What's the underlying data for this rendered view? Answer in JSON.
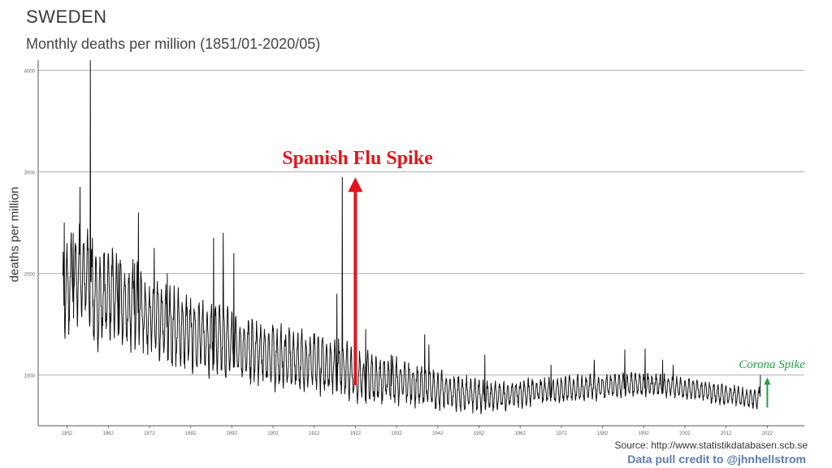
{
  "header": {
    "title": "SWEDEN",
    "subtitle": "Monthly deaths per million (1851/01-2020/05)"
  },
  "annotations": {
    "spanish_flu": "Spanish Flu Spike",
    "corona": "Corona Spike"
  },
  "footer": {
    "source": "Source: http://www.statistikdatabasen.scb.se",
    "credit": "Data pull credit to @jhnhellstrom"
  },
  "colors": {
    "line": "#111111",
    "spanish_arrow": "#e3141c",
    "corona": "#22a045",
    "grid": "#9a9a9a"
  },
  "chart_data": {
    "type": "line",
    "title": "SWEDEN",
    "subtitle": "Monthly deaths per million (1851/01-2020/05)",
    "xlabel": "",
    "ylabel": "deaths per million",
    "xlim": [
      1845,
      2031
    ],
    "ylim": [
      500,
      4100
    ],
    "grid": true,
    "yticks": [
      1000,
      2000,
      3000,
      4000
    ],
    "xticks": [
      "1852",
      "1862",
      "1872",
      "1882",
      "1892",
      "1902",
      "1912",
      "1922",
      "1932",
      "1942",
      "1952",
      "1962",
      "1972",
      "1982",
      "1992",
      "2002",
      "2012",
      "2022"
    ],
    "series": [
      {
        "values": [
          [
            1851,
            1750
          ],
          [
            1853,
            1900
          ],
          [
            1855,
            2000
          ],
          [
            1857,
            1950
          ],
          [
            1859,
            1700
          ],
          [
            1861,
            1780
          ],
          [
            1863,
            1800
          ],
          [
            1865,
            1700
          ],
          [
            1867,
            1650
          ],
          [
            1869,
            1720
          ],
          [
            1871,
            1600
          ],
          [
            1873,
            1550
          ],
          [
            1875,
            1500
          ],
          [
            1877,
            1480
          ],
          [
            1879,
            1450
          ],
          [
            1881,
            1420
          ],
          [
            1883,
            1400
          ],
          [
            1885,
            1380
          ],
          [
            1887,
            1360
          ],
          [
            1889,
            1340
          ],
          [
            1891,
            1320
          ],
          [
            1893,
            1290
          ],
          [
            1895,
            1260
          ],
          [
            1897,
            1230
          ],
          [
            1899,
            1210
          ],
          [
            1901,
            1190
          ],
          [
            1903,
            1170
          ],
          [
            1905,
            1160
          ],
          [
            1907,
            1150
          ],
          [
            1909,
            1140
          ],
          [
            1911,
            1130
          ],
          [
            1913,
            1110
          ],
          [
            1915,
            1100
          ],
          [
            1917,
            1090
          ],
          [
            1919,
            1080
          ],
          [
            1921,
            1000
          ],
          [
            1923,
            980
          ],
          [
            1925,
            970
          ],
          [
            1927,
            960
          ],
          [
            1929,
            950
          ],
          [
            1931,
            940
          ],
          [
            1933,
            930
          ],
          [
            1935,
            920
          ],
          [
            1937,
            900
          ],
          [
            1939,
            880
          ],
          [
            1941,
            860
          ],
          [
            1943,
            850
          ],
          [
            1945,
            830
          ],
          [
            1947,
            820
          ],
          [
            1949,
            810
          ],
          [
            1951,
            800
          ],
          [
            1953,
            790
          ],
          [
            1955,
            785
          ],
          [
            1957,
            790
          ],
          [
            1959,
            800
          ],
          [
            1961,
            810
          ],
          [
            1963,
            820
          ],
          [
            1965,
            830
          ],
          [
            1967,
            840
          ],
          [
            1969,
            850
          ],
          [
            1971,
            855
          ],
          [
            1973,
            860
          ],
          [
            1975,
            865
          ],
          [
            1977,
            870
          ],
          [
            1979,
            875
          ],
          [
            1981,
            880
          ],
          [
            1983,
            885
          ],
          [
            1985,
            890
          ],
          [
            1987,
            895
          ],
          [
            1989,
            900
          ],
          [
            1991,
            905
          ],
          [
            1993,
            900
          ],
          [
            1995,
            895
          ],
          [
            1997,
            890
          ],
          [
            1999,
            885
          ],
          [
            2001,
            870
          ],
          [
            2003,
            860
          ],
          [
            2005,
            850
          ],
          [
            2007,
            835
          ],
          [
            2009,
            820
          ],
          [
            2011,
            810
          ],
          [
            2013,
            800
          ],
          [
            2015,
            790
          ],
          [
            2017,
            780
          ],
          [
            2019,
            760
          ],
          [
            2020,
            780
          ]
        ],
        "amplitude": [
          [
            1851,
            380
          ],
          [
            1880,
            300
          ],
          [
            1920,
            220
          ],
          [
            1940,
            160
          ],
          [
            1960,
            110
          ],
          [
            1980,
            100
          ],
          [
            2000,
            90
          ],
          [
            2020,
            80
          ]
        ],
        "spikes": [
          [
            1851.3,
            2500
          ],
          [
            1853.5,
            2400
          ],
          [
            1855.2,
            2850
          ],
          [
            1857.2,
            2250
          ],
          [
            1857.7,
            4100
          ],
          [
            1858.2,
            2350
          ],
          [
            1862.0,
            2200
          ],
          [
            1864.5,
            2100
          ],
          [
            1868.4,
            2100
          ],
          [
            1869.3,
            2600
          ],
          [
            1873.2,
            2250
          ],
          [
            1876.3,
            2000
          ],
          [
            1887.6,
            2350
          ],
          [
            1889.9,
            2400
          ],
          [
            1892.5,
            2200
          ],
          [
            1917.5,
            1800
          ],
          [
            1918.8,
            2950
          ],
          [
            1924.5,
            1450
          ],
          [
            1930.7,
            1200
          ],
          [
            1938.8,
            1400
          ],
          [
            1939.8,
            1300
          ],
          [
            1953.4,
            1200
          ],
          [
            1969.5,
            1100
          ],
          [
            1980.0,
            1150
          ],
          [
            1987.4,
            1250
          ],
          [
            1992.3,
            1260
          ],
          [
            1996.6,
            1150
          ],
          [
            1999.2,
            1100
          ],
          [
            2020.3,
            1000
          ]
        ]
      }
    ]
  }
}
